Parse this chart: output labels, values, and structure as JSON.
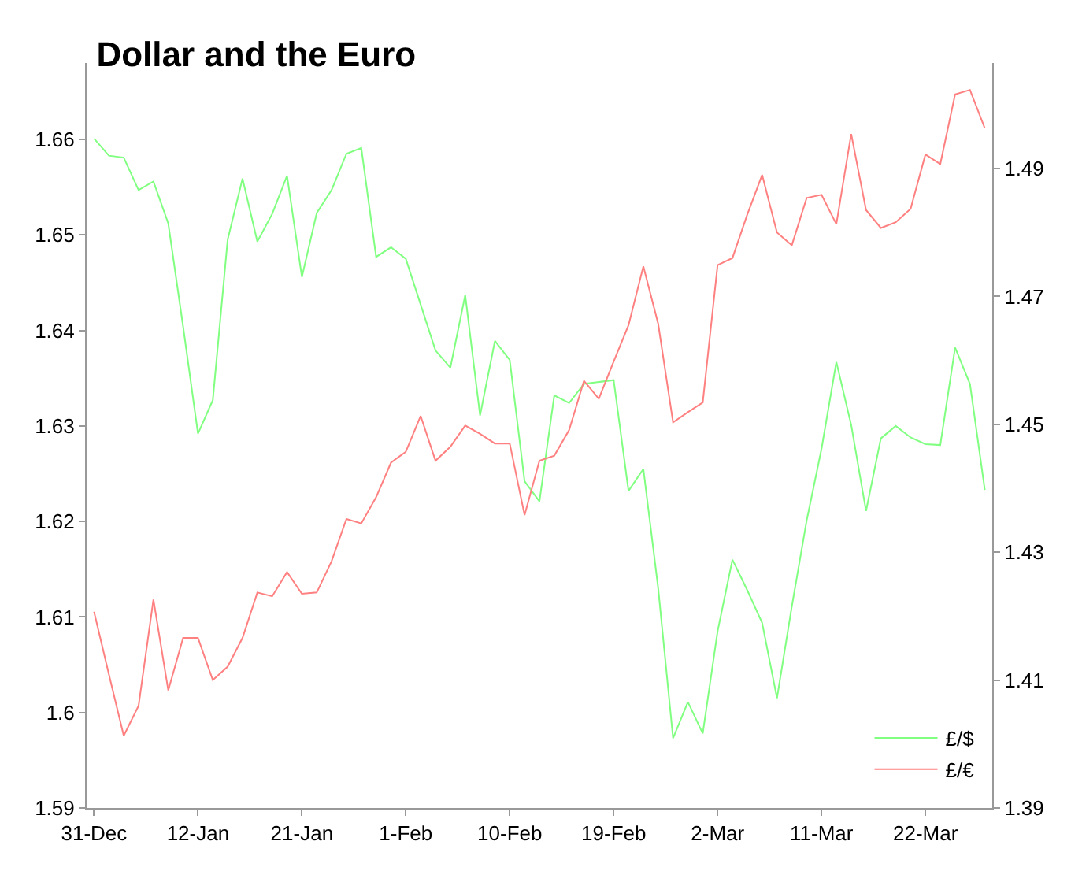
{
  "chart_data": {
    "type": "line",
    "title": "Dollar and the Euro",
    "categories": [
      "31-Dec",
      null,
      null,
      null,
      null,
      null,
      null,
      "12-Jan",
      null,
      null,
      null,
      null,
      null,
      null,
      "21-Jan",
      null,
      null,
      null,
      null,
      null,
      null,
      "1-Feb",
      null,
      null,
      null,
      null,
      null,
      null,
      "10-Feb",
      null,
      null,
      null,
      null,
      null,
      null,
      "19-Feb",
      null,
      null,
      null,
      null,
      null,
      null,
      "2-Mar",
      null,
      null,
      null,
      null,
      null,
      null,
      "11-Mar",
      null,
      null,
      null,
      null,
      null,
      null,
      "22-Mar",
      null,
      null,
      null,
      null
    ],
    "series": [
      {
        "name": "£/$",
        "color": "#80ff80",
        "values": [
          1.6601,
          1.6583,
          1.6581,
          1.6547,
          1.6556,
          1.6512,
          1.6404,
          1.6292,
          1.6327,
          1.6495,
          1.6559,
          1.6493,
          1.6522,
          1.6562,
          1.6456,
          1.6523,
          1.6547,
          1.6585,
          1.6591,
          1.6477,
          1.6487,
          1.6475,
          1.6427,
          1.6379,
          1.6361,
          1.6437,
          1.6311,
          1.6389,
          1.6369,
          1.6242,
          1.6221,
          1.6332,
          1.6324,
          1.6344,
          1.6346,
          1.6348,
          1.6232,
          1.6255,
          1.613,
          1.5973,
          1.6011,
          1.5978,
          1.6085,
          1.616,
          1.6128,
          1.6094,
          1.6015,
          1.6111,
          1.6201,
          1.6276,
          1.6367,
          1.6301,
          1.6211,
          1.6287,
          1.63,
          1.6288,
          1.6281,
          1.628,
          1.6382,
          1.6344,
          1.6233
        ]
      },
      {
        "name": "£/€",
        "color": "#ff8080",
        "axis": "y2",
        "values": [
          1.4207,
          1.4109,
          1.4013,
          1.406,
          1.4226,
          1.4084,
          1.4166,
          1.4166,
          1.41,
          1.4121,
          1.4166,
          1.4237,
          1.4231,
          1.4269,
          1.4235,
          1.4237,
          1.4286,
          1.4352,
          1.4345,
          1.4386,
          1.444,
          1.4457,
          1.4513,
          1.4443,
          1.4465,
          1.4498,
          1.4485,
          1.447,
          1.447,
          1.4358,
          1.4443,
          1.4451,
          1.4491,
          1.4568,
          1.454,
          1.4598,
          1.4655,
          1.4747,
          1.4657,
          1.4503,
          1.4519,
          1.4534,
          1.4749,
          1.476,
          1.4828,
          1.489,
          1.48,
          1.478,
          1.4854,
          1.4859,
          1.4813,
          1.4954,
          1.4835,
          1.4807,
          1.4816,
          1.4837,
          1.4922,
          1.4907,
          1.5016,
          1.5023,
          1.4963
        ]
      }
    ],
    "ylim": [
      1.59,
      1.668
    ],
    "yticks": [
      1.59,
      1.6,
      1.61,
      1.62,
      1.63,
      1.64,
      1.65,
      1.66
    ],
    "y2lim": [
      1.39,
      1.5065
    ],
    "y2ticks": [
      1.39,
      1.41,
      1.43,
      1.45,
      1.47,
      1.49
    ],
    "legend": "bottom right",
    "marker": "none",
    "line_style": "solid"
  }
}
